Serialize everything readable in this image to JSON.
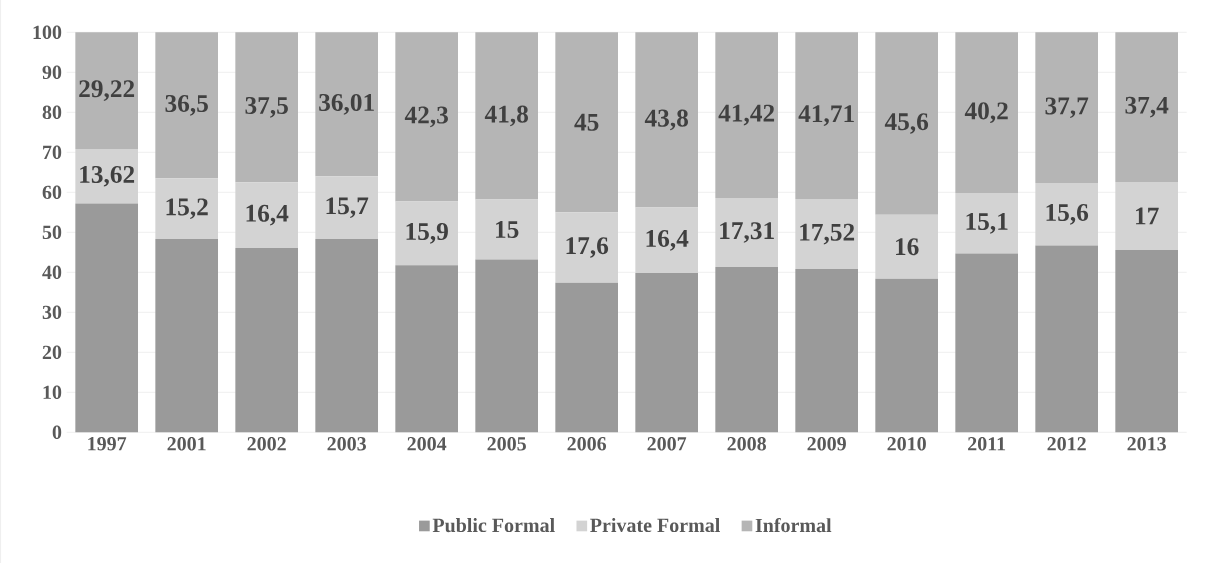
{
  "chart_data": {
    "type": "bar",
    "stacked": true,
    "categories": [
      "1997",
      "2001",
      "2002",
      "2003",
      "2004",
      "2005",
      "2006",
      "2007",
      "2008",
      "2009",
      "2010",
      "2011",
      "2012",
      "2013"
    ],
    "series": [
      {
        "name": "Public Formal",
        "color": "#9a9a9a",
        "values": [
          57.2,
          48.3,
          46.1,
          48.3,
          41.8,
          43.2,
          37.4,
          39.8,
          41.3,
          40.8,
          38.4,
          44.7,
          46.7,
          45.6
        ]
      },
      {
        "name": "Private Formal",
        "color": "#d3d3d3",
        "values": [
          13.62,
          15.2,
          16.4,
          15.7,
          15.9,
          15,
          17.6,
          16.4,
          17.31,
          17.52,
          16,
          15.1,
          15.6,
          17
        ],
        "value_labels": [
          "13,62",
          "15,2",
          "16,4",
          "15,7",
          "15,9",
          "15",
          "17,6",
          "16,4",
          "17,31",
          "17,52",
          "16",
          "15,1",
          "15,6",
          "17"
        ]
      },
      {
        "name": "Informal",
        "color": "#b5b5b5",
        "values": [
          29.22,
          36.5,
          37.5,
          36.01,
          42.3,
          41.8,
          45,
          43.8,
          41.42,
          41.71,
          45.6,
          40.2,
          37.7,
          37.4
        ],
        "value_labels": [
          "29,22",
          "36,5",
          "37,5",
          "36,01",
          "42,3",
          "41,8",
          "45",
          "43,8",
          "41,42",
          "41,71",
          "45,6",
          "40,2",
          "37,7",
          "37,4"
        ]
      }
    ],
    "ylim": [
      0,
      100
    ],
    "yticks": [
      0,
      10,
      20,
      30,
      40,
      50,
      60,
      70,
      80,
      90,
      100
    ],
    "grid": "y",
    "legend": "bottom"
  }
}
